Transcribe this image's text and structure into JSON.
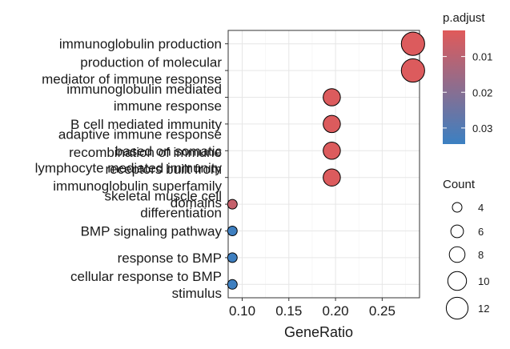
{
  "chart_data": {
    "type": "scatter",
    "title": "",
    "xlabel": "GeneRatio",
    "ylabel": "",
    "xlim": [
      0.085,
      0.29
    ],
    "xticks": [
      0.1,
      0.15,
      0.2,
      0.25
    ],
    "xtick_labels": [
      "0.10",
      "0.15",
      "0.20",
      "0.25"
    ],
    "grid": true,
    "legend_placement": "right",
    "categories": [
      [
        "immunoglobulin production"
      ],
      [
        "production of molecular",
        "mediator of immune response"
      ],
      [
        "immunoglobulin mediated",
        "immune response"
      ],
      [
        "B cell mediated immunity"
      ],
      [
        "adaptive immune response",
        "based on somatic",
        "lymphocyte mediated immunity"
      ],
      [
        "recombination of immune",
        "receptors built from",
        "immunoglobulin superfamily",
        "domains"
      ],
      [
        "skeletal muscle cell",
        "differentiation"
      ],
      [
        "BMP signaling pathway"
      ],
      [
        "response to BMP"
      ],
      [
        "cellular response to BMP",
        "stimulus"
      ]
    ],
    "points": [
      {
        "x": 0.283,
        "count": 13,
        "p_adjust": 0.0035
      },
      {
        "x": 0.283,
        "count": 13,
        "p_adjust": 0.0035
      },
      {
        "x": 0.196,
        "count": 9,
        "p_adjust": 0.0035
      },
      {
        "x": 0.196,
        "count": 9,
        "p_adjust": 0.0035
      },
      {
        "x": 0.196,
        "count": 9,
        "p_adjust": 0.0035
      },
      {
        "x": 0.196,
        "count": 9,
        "p_adjust": 0.0035
      },
      {
        "x": 0.0895,
        "count": 4,
        "p_adjust": 0.008
      },
      {
        "x": 0.0895,
        "count": 4,
        "p_adjust": 0.034
      },
      {
        "x": 0.0895,
        "count": 4,
        "p_adjust": 0.034
      },
      {
        "x": 0.0895,
        "count": 4,
        "p_adjust": 0.034
      }
    ],
    "color_legend": {
      "title": "p.adjust",
      "low_color": "#E05A5A",
      "high_color": "#3B80C2",
      "range": [
        0.0027,
        0.0345
      ],
      "ticks": [
        0.01,
        0.02,
        0.03
      ],
      "tick_labels": [
        "0.01",
        "0.02",
        "0.03"
      ]
    },
    "size_legend": {
      "title": "Count",
      "values": [
        4,
        6,
        8,
        10,
        12
      ],
      "labels": [
        "4",
        "6",
        "8",
        "10",
        "12"
      ]
    }
  }
}
